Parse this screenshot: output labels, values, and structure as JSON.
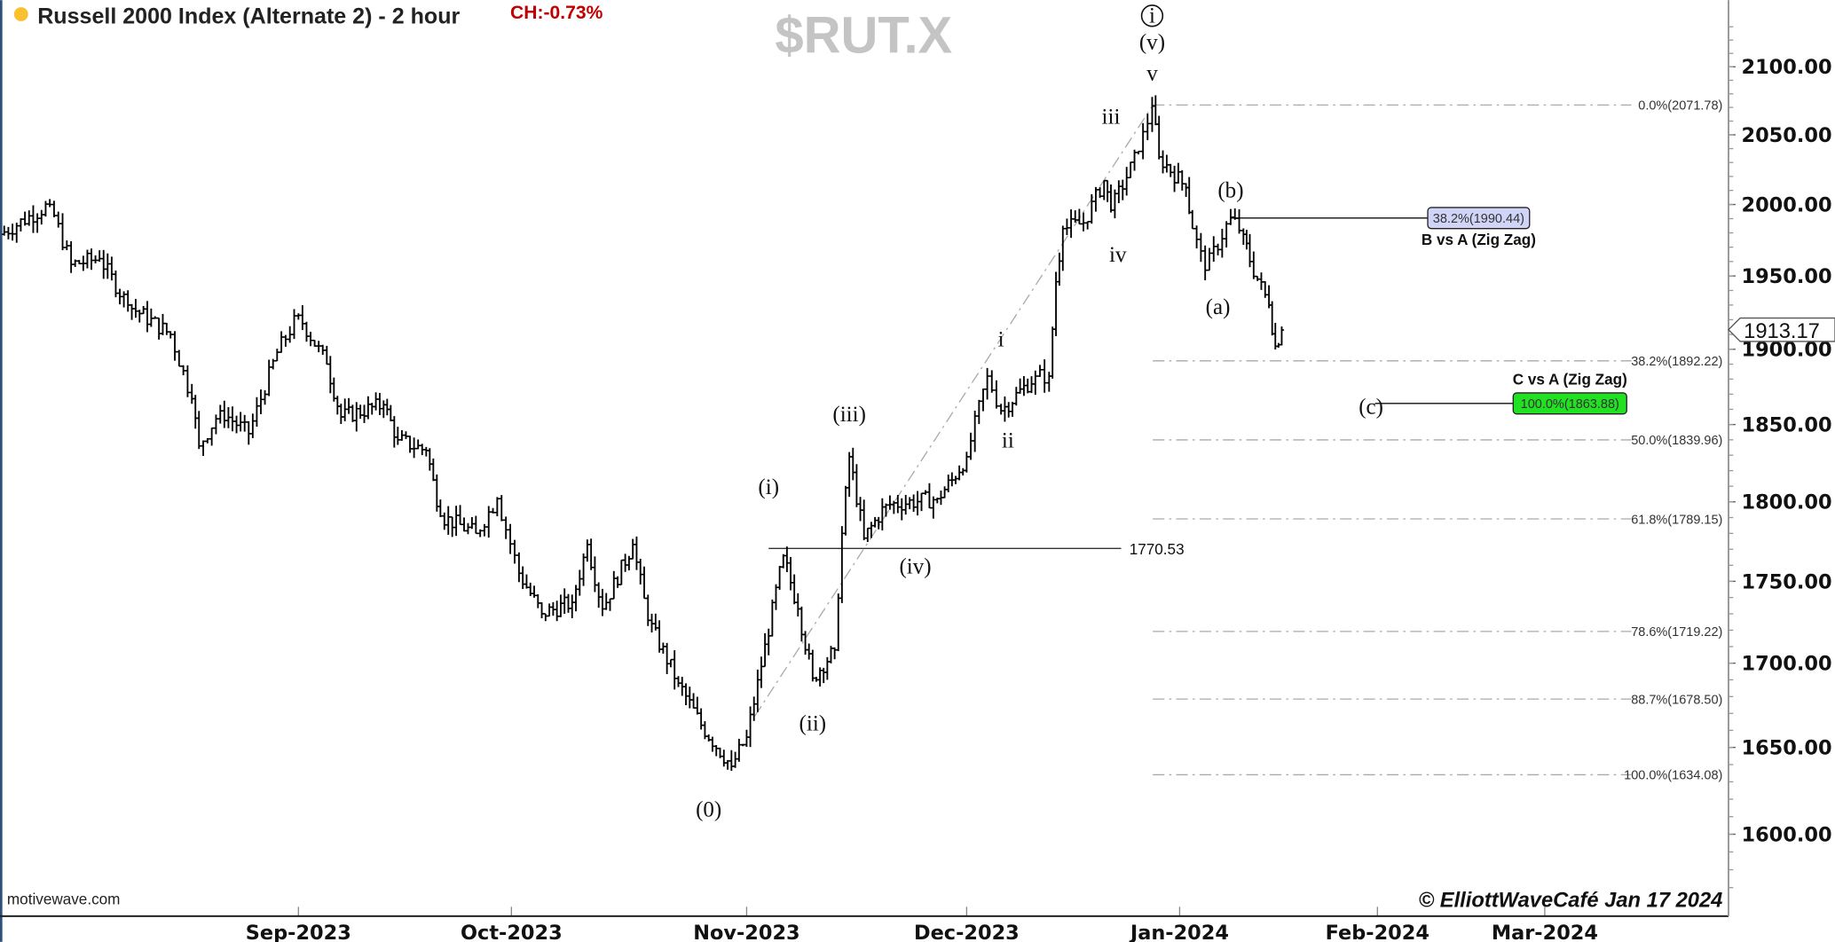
{
  "header": {
    "title": "Russell 2000 Index (Alternate 2) - 2 hour",
    "change": "CH:-0.73%",
    "symbol": "$RUT.X",
    "status_dot_color": "#f9c12e",
    "change_color": "#c00000"
  },
  "footer": {
    "source": "motivewave.com",
    "copyright": "© ElliottWaveCafé Jan 17 2024"
  },
  "chart_data": {
    "type": "ohlc",
    "title": "Russell 2000 Index (Alternate 2) - 2 hour",
    "y_scale": "log",
    "ylim": [
      1560,
      2130
    ],
    "y_ticks": [
      "2100.00",
      "2050.00",
      "2000.00",
      "1950.00",
      "1900.00",
      "1850.00",
      "1800.00",
      "1750.00",
      "1700.00",
      "1650.00",
      "1600.00"
    ],
    "x_ticks": [
      {
        "label": "Sep-2023",
        "date": "2023-09-01"
      },
      {
        "label": "Oct-2023",
        "date": "2023-10-01"
      },
      {
        "label": "Nov-2023",
        "date": "2023-11-01"
      },
      {
        "label": "Dec-2023",
        "date": "2023-12-01"
      },
      {
        "label": "Jan-2024",
        "date": "2024-01-01"
      },
      {
        "label": "Feb-2024",
        "date": "2024-02-01"
      },
      {
        "label": "Mar-2024",
        "date": "2024-03-01"
      }
    ],
    "last_price": "1913.17",
    "price_path": [
      [
        "2023-07-21",
        1979
      ],
      [
        "2023-07-28",
        2000
      ],
      [
        "2023-07-31",
        1958
      ],
      [
        "2023-08-04",
        1962
      ],
      [
        "2023-08-08",
        1930
      ],
      [
        "2023-08-14",
        1910
      ],
      [
        "2023-08-17",
        1867
      ],
      [
        "2023-08-18",
        1836
      ],
      [
        "2023-08-21",
        1859
      ],
      [
        "2023-08-25",
        1844
      ],
      [
        "2023-08-29",
        1898
      ],
      [
        "2023-09-01",
        1923
      ],
      [
        "2023-09-05",
        1890
      ],
      [
        "2023-09-07",
        1855
      ],
      [
        "2023-09-13",
        1863
      ],
      [
        "2023-09-15",
        1840
      ],
      [
        "2023-09-19",
        1833
      ],
      [
        "2023-09-20",
        1814
      ],
      [
        "2023-09-21",
        1791
      ],
      [
        "2023-09-26",
        1780
      ],
      [
        "2023-09-29",
        1802
      ],
      [
        "2023-10-02",
        1755
      ],
      [
        "2023-10-05",
        1730
      ],
      [
        "2023-10-09",
        1737
      ],
      [
        "2023-10-11",
        1773
      ],
      [
        "2023-10-13",
        1733
      ],
      [
        "2023-10-17",
        1773
      ],
      [
        "2023-10-19",
        1726
      ],
      [
        "2023-10-23",
        1688
      ],
      [
        "2023-10-26",
        1663
      ],
      [
        "2023-10-30",
        1639
      ],
      [
        "2023-11-01",
        1656
      ],
      [
        "2023-11-03",
        1698
      ],
      [
        "2023-11-06",
        1766
      ],
      [
        "2023-11-08",
        1733
      ],
      [
        "2023-11-10",
        1691
      ],
      [
        "2023-11-13",
        1708
      ],
      [
        "2023-11-14",
        1780
      ],
      [
        "2023-11-15",
        1829
      ],
      [
        "2023-11-17",
        1777
      ],
      [
        "2023-11-20",
        1798
      ],
      [
        "2023-11-27",
        1802
      ],
      [
        "2023-11-29",
        1814
      ],
      [
        "2023-12-01",
        1829
      ],
      [
        "2023-12-04",
        1882
      ],
      [
        "2023-12-06",
        1859
      ],
      [
        "2023-12-11",
        1882
      ],
      [
        "2023-12-13",
        1882
      ],
      [
        "2023-12-14",
        1946
      ],
      [
        "2023-12-15",
        1983
      ],
      [
        "2023-12-18",
        1987
      ],
      [
        "2023-12-21",
        2017
      ],
      [
        "2023-12-22",
        1996
      ],
      [
        "2023-12-26",
        2038
      ],
      [
        "2023-12-28",
        2071
      ],
      [
        "2023-12-29",
        2034
      ],
      [
        "2024-01-02",
        2012
      ],
      [
        "2024-01-03",
        1983
      ],
      [
        "2024-01-05",
        1954
      ],
      [
        "2024-01-09",
        1991
      ],
      [
        "2024-01-11",
        1979
      ],
      [
        "2024-01-12",
        1960
      ],
      [
        "2024-01-15",
        1930
      ],
      [
        "2024-01-16",
        1902
      ],
      [
        "2024-01-17",
        1913
      ]
    ],
    "fib_retracements": [
      {
        "label": "0.0%(2071.78)",
        "price": 2071.78
      },
      {
        "label": "38.2%(1892.22)",
        "price": 1892.22
      },
      {
        "label": "50.0%(1839.96)",
        "price": 1839.96
      },
      {
        "label": "61.8%(1789.15)",
        "price": 1789.15
      },
      {
        "label": "78.6%(1719.22)",
        "price": 1719.22
      },
      {
        "label": "88.7%(1678.50)",
        "price": 1678.5
      },
      {
        "label": "100.0%(1634.08)",
        "price": 1634.08
      }
    ],
    "level_line": {
      "label": "1770.53",
      "price": 1770.53,
      "from_date": "2023-11-04"
    },
    "projections": [
      {
        "title": "B vs A (Zig Zag)",
        "box": "38.2%(1990.44)",
        "price": 1990.44,
        "from_date": "2024-01-09",
        "color": "#d0d4f7"
      },
      {
        "title": "C vs A (Zig Zag)",
        "box": "100.0%(1863.88)",
        "price": 1863.88,
        "from_date": "2024-02-01",
        "color": "#22e022"
      }
    ],
    "wave_labels": [
      {
        "text": "(0)",
        "date": "2023-10-27",
        "price": 1610
      },
      {
        "text": "(i)",
        "date": "2023-11-04",
        "price": 1805
      },
      {
        "text": "(ii)",
        "date": "2023-11-10",
        "price": 1660
      },
      {
        "text": "(iii)",
        "date": "2023-11-15",
        "price": 1852
      },
      {
        "text": "(iv)",
        "date": "2023-11-24",
        "price": 1755
      },
      {
        "text": "i",
        "date": "2023-12-06",
        "price": 1902
      },
      {
        "text": "ii",
        "date": "2023-12-07",
        "price": 1835
      },
      {
        "text": "iii",
        "date": "2023-12-22",
        "price": 2058
      },
      {
        "text": "iv",
        "date": "2023-12-23",
        "price": 1960
      },
      {
        "text": "v",
        "date": "2023-12-28",
        "price": 2090
      },
      {
        "text": "(v)",
        "date": "2023-12-28",
        "price": 2113
      },
      {
        "text": "i",
        "date": "2023-12-28",
        "circled": true,
        "price": 2133
      },
      {
        "text": "(a)",
        "date": "2024-01-07",
        "price": 1924
      },
      {
        "text": "(b)",
        "date": "2024-01-09",
        "price": 2005
      },
      {
        "text": "(c)",
        "date": "2024-01-31",
        "price": 1857
      }
    ]
  }
}
